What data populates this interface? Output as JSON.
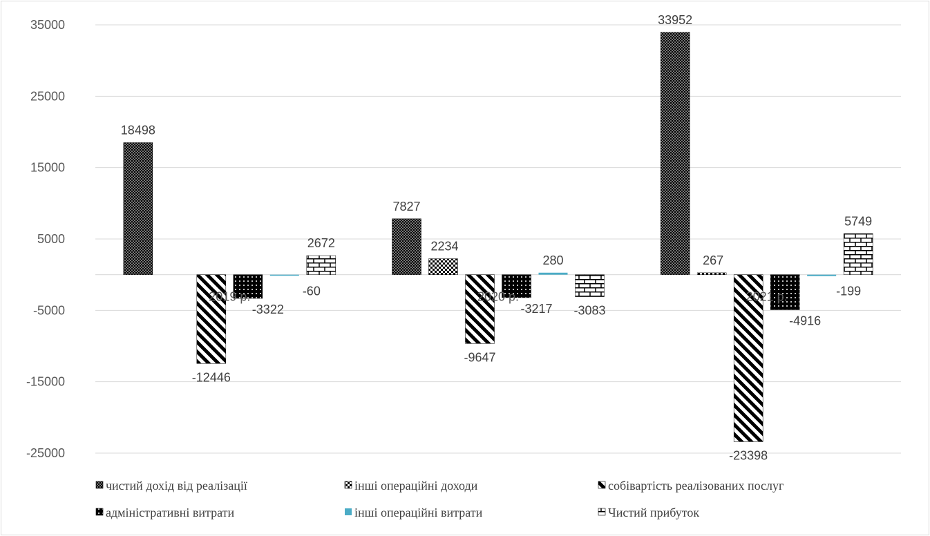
{
  "chart_data": {
    "type": "bar",
    "categories": [
      "2019 р.",
      "2020 р.",
      "2021 р."
    ],
    "ylim": [
      -25000,
      35000
    ],
    "yticks": [
      35000,
      25000,
      15000,
      5000,
      -5000,
      -15000,
      -25000
    ],
    "grid": true,
    "legend_position": "bottom",
    "series": [
      {
        "name": "чистий дохід від реалізації",
        "values": [
          18498,
          7827,
          33952
        ],
        "pattern": "dots-dense",
        "color": "#000000"
      },
      {
        "name": "інші операційні доходи",
        "values": [
          null,
          2234,
          267
        ],
        "pattern": "checker",
        "color": "#000000"
      },
      {
        "name": "собівартість реалізованих послуг",
        "values": [
          -12446,
          -9647,
          -23398
        ],
        "pattern": "diagonal",
        "color": "#000000"
      },
      {
        "name": "адміністративні витрати",
        "values": [
          -3322,
          -3217,
          -4916
        ],
        "pattern": "dots-dark",
        "color": "#000000"
      },
      {
        "name": "інші операційні витрати",
        "values": [
          -60,
          280,
          -199
        ],
        "pattern": "solid",
        "color": "#4bacc6"
      },
      {
        "name": "Чистий прибуток",
        "values": [
          2672,
          -3083,
          5749
        ],
        "pattern": "brick",
        "color": "#000000"
      }
    ],
    "data_labels": [
      [
        "18498",
        "",
        "-12446",
        "-3322",
        "-60",
        "2672"
      ],
      [
        "7827",
        "2234",
        "-9647",
        "-3217",
        "280",
        "-3083"
      ],
      [
        "33952",
        "267",
        "-23398",
        "-4916",
        "-199",
        "5749"
      ]
    ]
  }
}
